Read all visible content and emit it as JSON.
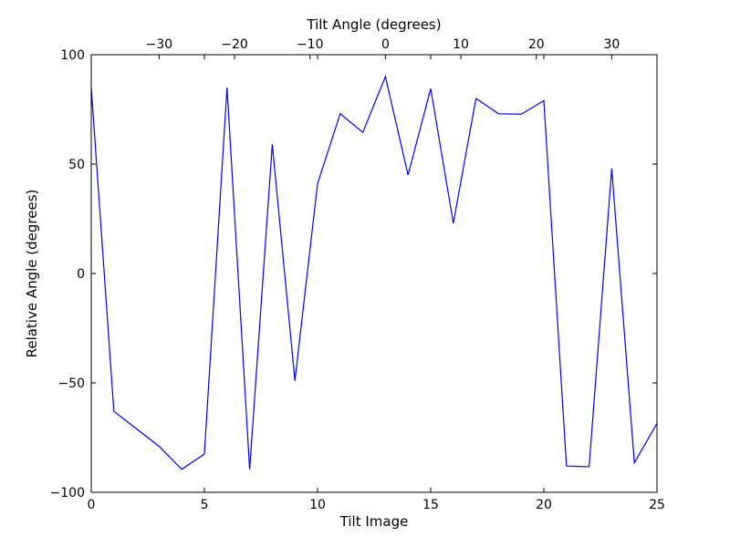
{
  "chart_data": {
    "type": "line",
    "title": "",
    "xlabel": "Tilt Image",
    "ylabel": "Relative Angle (degrees)",
    "x2label": "Tilt Angle (degrees)",
    "xlim": [
      0,
      25
    ],
    "ylim": [
      -100,
      100
    ],
    "x2lim": [
      -39,
      36
    ],
    "x_ticks": [
      0,
      5,
      10,
      15,
      20,
      25
    ],
    "x_tick_labels": [
      "0",
      "5",
      "10",
      "15",
      "20",
      "25"
    ],
    "y_ticks": [
      100,
      50,
      0,
      -50,
      -100
    ],
    "y_tick_labels": [
      "100",
      "50",
      "0",
      "−50",
      "−100"
    ],
    "x2_ticks": [
      -30,
      -20,
      -10,
      0,
      10,
      20,
      30
    ],
    "x2_tick_labels": [
      "−30",
      "−20",
      "−10",
      "0",
      "10",
      "20",
      "30"
    ],
    "grid": false,
    "legend": "none",
    "series": [
      {
        "color": "#0000ff",
        "x": [
          0,
          1,
          2,
          3,
          4,
          5,
          6,
          7,
          8,
          9,
          10,
          11,
          12,
          13,
          14,
          15,
          16,
          17,
          18,
          19,
          20,
          21,
          22,
          23,
          24,
          25
        ],
        "y": [
          85,
          -63,
          -71,
          -79,
          -89.5,
          -82.5,
          85,
          -89.5,
          59,
          -49,
          41,
          73,
          64.5,
          90,
          45,
          84.5,
          23,
          80,
          73,
          72.8,
          79,
          -88,
          -88.3,
          48,
          -86.5,
          -68.5
        ]
      }
    ]
  }
}
